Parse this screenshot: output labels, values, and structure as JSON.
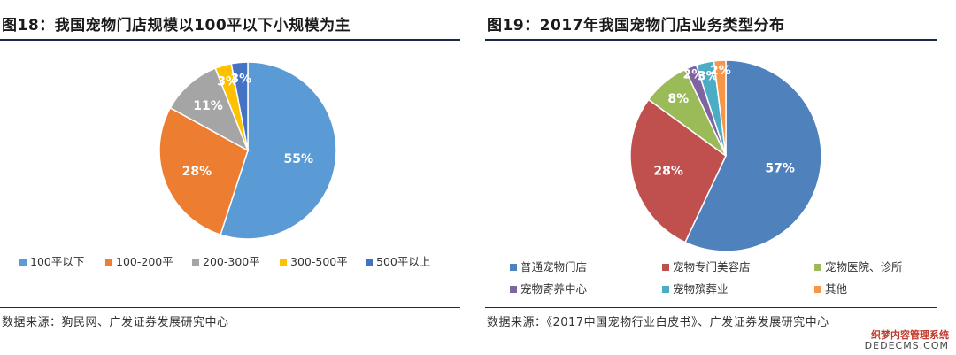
{
  "left": {
    "title": "图18：我国宠物门店规模以100平以下小规模为主",
    "source": "数据来源：狗民网、广发证券发展研究中心"
  },
  "right": {
    "title": "图19：2017年我国宠物门店业务类型分布",
    "source": "数据来源：《2017中国宠物行业白皮书》、广发证券发展研究中心"
  },
  "watermark": {
    "line1": "织梦内容管理系统",
    "line2": "DEDECMS.COM"
  },
  "chart_data": [
    {
      "type": "pie",
      "title": "图18：我国宠物门店规模以100平以下小规模为主",
      "categories": [
        "100平以下",
        "100-200平",
        "200-300平",
        "300-500平",
        "500平以上"
      ],
      "values": [
        55,
        28,
        11,
        3,
        3
      ],
      "labels": [
        "55%",
        "28%",
        "11%",
        "3%",
        "3%"
      ],
      "colors": [
        "#5b9bd5",
        "#ed7d31",
        "#a5a5a5",
        "#ffc000",
        "#4472c4"
      ],
      "legend": "bottom"
    },
    {
      "type": "pie",
      "title": "图19：2017年我国宠物门店业务类型分布",
      "categories": [
        "普通宠物门店",
        "宠物专门美容店",
        "宠物医院、诊所",
        "宠物寄养中心",
        "宠物殡葬业",
        "其他"
      ],
      "values": [
        57,
        28,
        8,
        2,
        3,
        2
      ],
      "labels": [
        "57%",
        "28%",
        "8%",
        "2%",
        "3%",
        "2%"
      ],
      "colors": [
        "#4f81bd",
        "#c0504d",
        "#9bbb59",
        "#8064a2",
        "#4bacc6",
        "#f79646"
      ],
      "legend": "bottom"
    }
  ]
}
